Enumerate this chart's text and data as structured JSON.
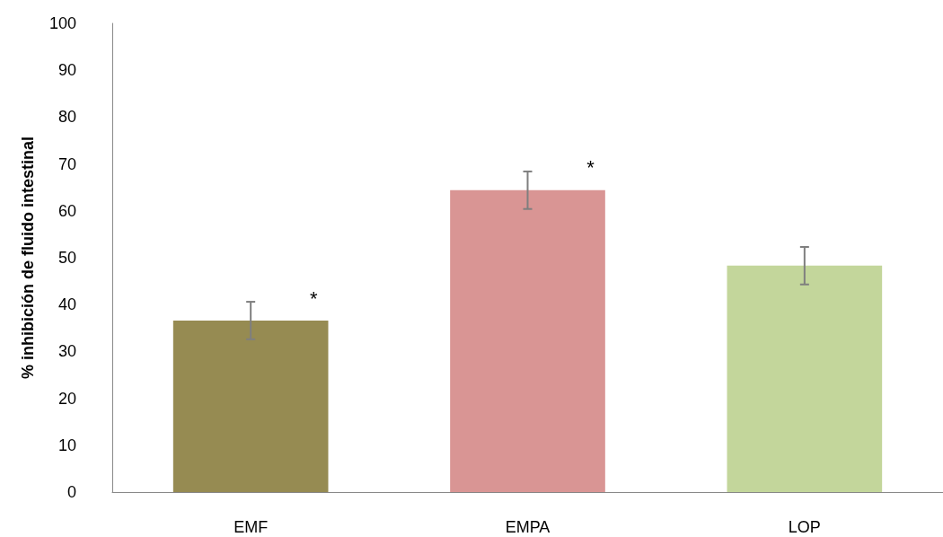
{
  "chart_data": {
    "type": "bar",
    "ylabel": "% inhibición de fluido intestinal",
    "categories": [
      "EMF",
      "EMPA",
      "LOP"
    ],
    "values": [
      36.6,
      64.4,
      48.3
    ],
    "colors": [
      "#968b52",
      "#d99594",
      "#c3d69b"
    ],
    "errors": [
      4,
      4,
      4
    ],
    "ylim": [
      0,
      100
    ],
    "yticks": [
      0,
      10,
      20,
      30,
      40,
      50,
      60,
      70,
      80,
      90,
      100
    ],
    "grid": false,
    "annotations": [
      {
        "text": "*",
        "x": "EMF",
        "y": 40.6
      },
      {
        "text": "*",
        "x": "EMPA",
        "y": 68.4
      }
    ]
  }
}
